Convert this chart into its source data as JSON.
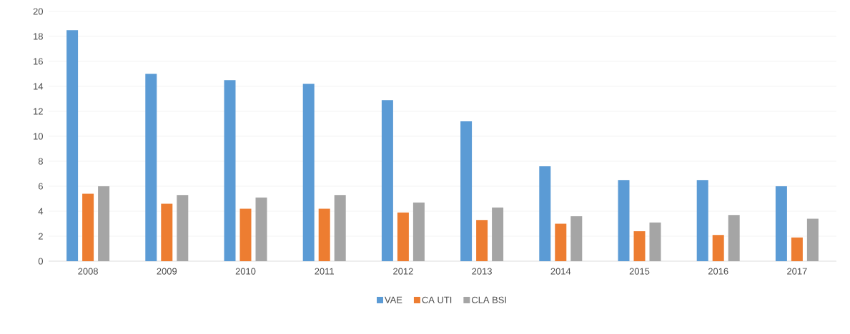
{
  "chart_data": {
    "type": "bar",
    "categories": [
      "2008",
      "2009",
      "2010",
      "2011",
      "2012",
      "2013",
      "2014",
      "2015",
      "2016",
      "2017"
    ],
    "series": [
      {
        "name": "VAE",
        "color": "#5b9bd5",
        "values": [
          18.5,
          15.0,
          14.5,
          14.2,
          12.9,
          11.2,
          7.6,
          6.5,
          6.5,
          6.0
        ]
      },
      {
        "name": "CA UTI",
        "color": "#ed7d31",
        "values": [
          5.4,
          4.6,
          4.2,
          4.2,
          3.9,
          3.3,
          3.0,
          2.4,
          2.1,
          1.9
        ]
      },
      {
        "name": "CLA BSI",
        "color": "#a5a5a5",
        "values": [
          6.0,
          5.3,
          5.1,
          5.3,
          4.7,
          4.3,
          3.6,
          3.1,
          3.7,
          3.4
        ]
      }
    ],
    "ylim": [
      0,
      20
    ],
    "yticks": [
      0,
      2,
      4,
      6,
      8,
      10,
      12,
      14,
      16,
      18,
      20
    ],
    "grid": "y",
    "legend": "bottom"
  }
}
